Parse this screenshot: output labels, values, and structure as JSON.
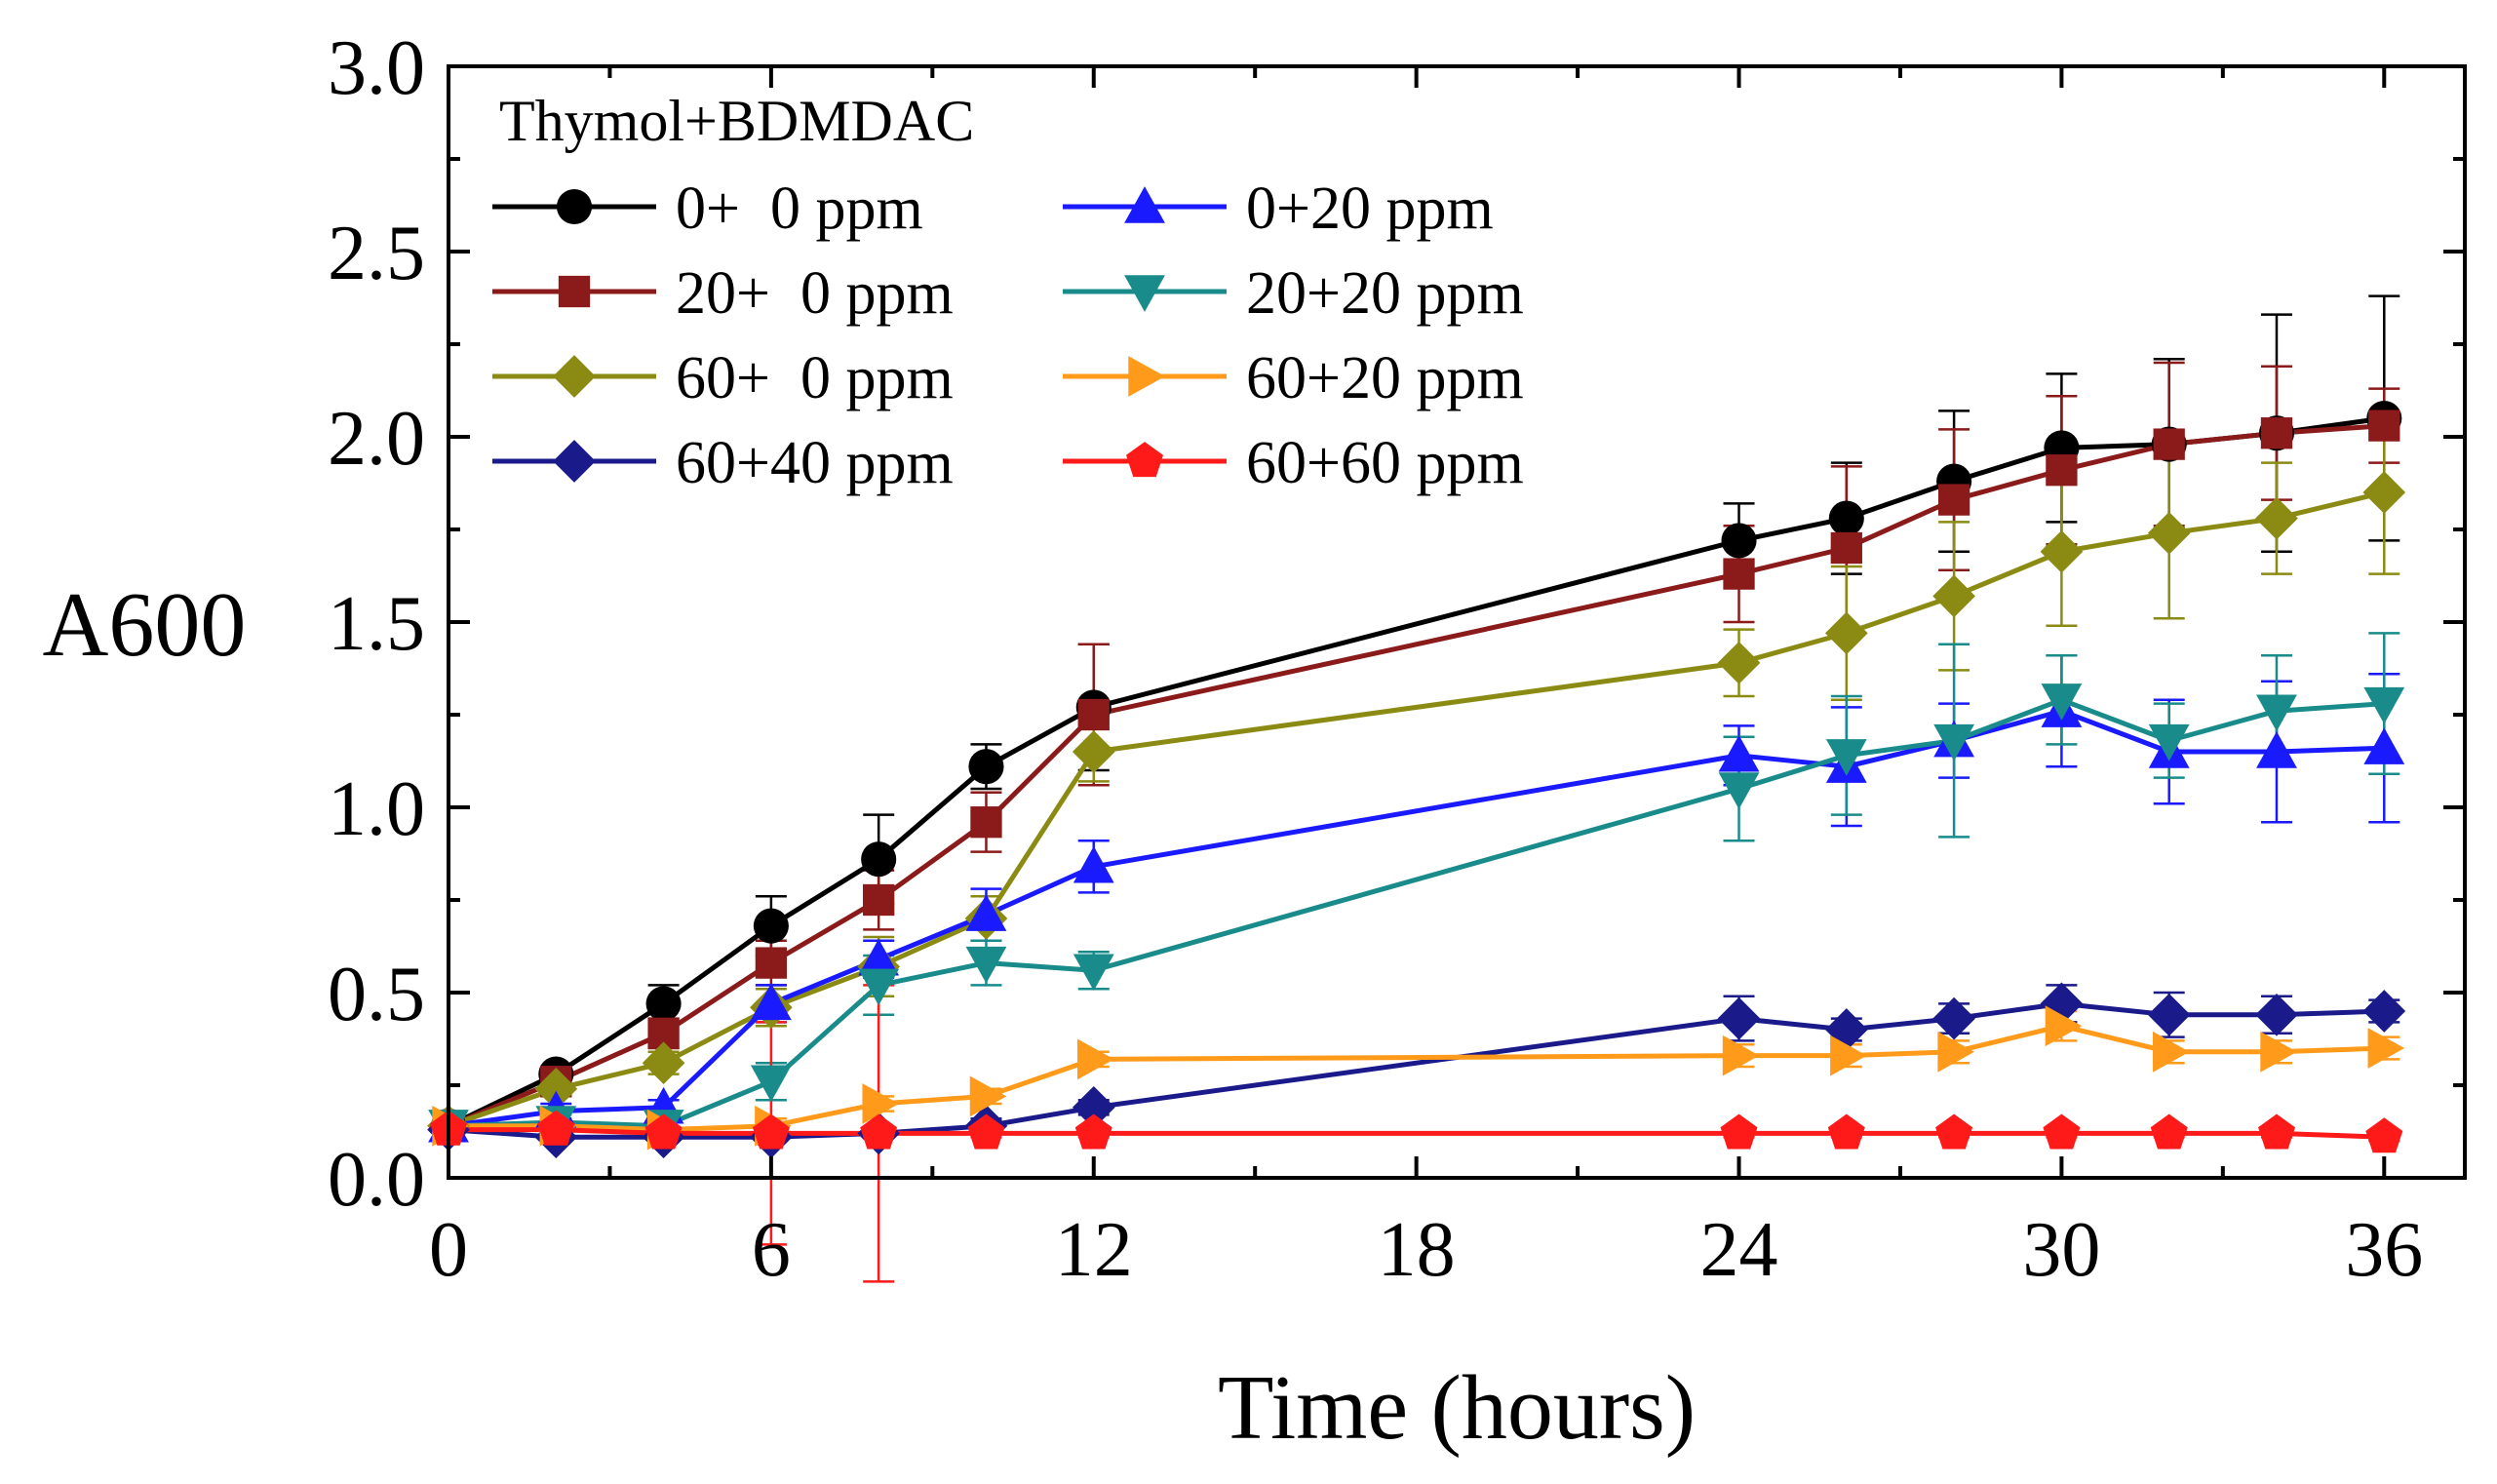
{
  "chart_data": {
    "type": "line",
    "title": "",
    "xlabel": "Time (hours)",
    "ylabel": "A600",
    "xlim": [
      0,
      37.5
    ],
    "ylim": [
      0,
      3.0
    ],
    "x_ticks": [
      0,
      6,
      12,
      18,
      24,
      30,
      36
    ],
    "x_tick_labels": [
      "0",
      "6",
      "12",
      "18",
      "24",
      "30",
      "36"
    ],
    "y_ticks": [
      0,
      0.5,
      1.0,
      1.5,
      2.0,
      2.5,
      3.0
    ],
    "y_tick_labels": [
      "0.0",
      "0.5",
      "1.0",
      "1.5",
      "2.0",
      "2.5",
      "3.0"
    ],
    "grid": false,
    "legend_title": "Thymol+BDMDAC",
    "legend_position": "top-left",
    "series": [
      {
        "name": "0+  0 ppm",
        "color": "#000000",
        "marker": "circle",
        "x": [
          0,
          2,
          4,
          6,
          8,
          10,
          12,
          24,
          26,
          28,
          30,
          32,
          34,
          36
        ],
        "values": [
          0.14,
          0.28,
          0.47,
          0.68,
          0.86,
          1.11,
          1.27,
          1.72,
          1.78,
          1.88,
          1.97,
          1.98,
          2.01,
          2.05
        ],
        "errors": [
          0.02,
          0.02,
          0.05,
          0.08,
          0.12,
          0.06,
          0.17,
          0.1,
          0.15,
          0.19,
          0.2,
          0.23,
          0.32,
          0.33
        ]
      },
      {
        "name": "20+  0 ppm",
        "color": "#8b1a1a",
        "marker": "square",
        "x": [
          0,
          2,
          4,
          6,
          8,
          10,
          12,
          24,
          26,
          28,
          30,
          32,
          34,
          36
        ],
        "values": [
          0.14,
          0.26,
          0.39,
          0.58,
          0.75,
          0.96,
          1.25,
          1.63,
          1.7,
          1.83,
          1.91,
          1.98,
          2.01,
          2.03
        ],
        "errors": [
          0.02,
          0.02,
          0.04,
          0.06,
          0.08,
          0.08,
          0.19,
          0.13,
          0.22,
          0.19,
          0.2,
          0.22,
          0.18,
          0.1
        ]
      },
      {
        "name": "60+  0 ppm",
        "color": "#8b8b14",
        "marker": "diamond",
        "x": [
          0,
          2,
          4,
          6,
          8,
          10,
          12,
          24,
          26,
          28,
          30,
          32,
          34,
          36
        ],
        "values": [
          0.14,
          0.24,
          0.31,
          0.46,
          0.57,
          0.7,
          1.15,
          1.39,
          1.47,
          1.57,
          1.69,
          1.74,
          1.78,
          1.85
        ],
        "errors": [
          0.02,
          0.02,
          0.03,
          0.05,
          0.08,
          0.06,
          0.08,
          0.09,
          0.18,
          0.2,
          0.2,
          0.23,
          0.15,
          0.22
        ]
      },
      {
        "name": "60+40 ppm",
        "color": "#1a1a8b",
        "marker": "diamond",
        "x": [
          0,
          2,
          4,
          6,
          8,
          10,
          12,
          24,
          26,
          28,
          30,
          32,
          34,
          36
        ],
        "values": [
          0.13,
          0.11,
          0.11,
          0.11,
          0.12,
          0.14,
          0.19,
          0.43,
          0.4,
          0.43,
          0.47,
          0.44,
          0.44,
          0.45
        ],
        "errors": [
          0.01,
          0.01,
          0.01,
          0.01,
          0.01,
          0.02,
          0.02,
          0.06,
          0.03,
          0.04,
          0.05,
          0.06,
          0.05,
          0.03
        ]
      },
      {
        "name": "0+20 ppm",
        "color": "#1a1aff",
        "marker": "triangle-up",
        "x": [
          0,
          2,
          4,
          6,
          8,
          10,
          12,
          24,
          26,
          28,
          30,
          32,
          34,
          36
        ],
        "values": [
          0.14,
          0.18,
          0.19,
          0.47,
          0.59,
          0.71,
          0.84,
          1.14,
          1.11,
          1.18,
          1.26,
          1.15,
          1.15,
          1.16
        ],
        "errors": [
          0.02,
          0.02,
          0.02,
          0.05,
          0.05,
          0.07,
          0.07,
          0.08,
          0.16,
          0.1,
          0.15,
          0.14,
          0.19,
          0.2
        ]
      },
      {
        "name": "20+20 ppm",
        "color": "#1a8b8b",
        "marker": "triangle-down",
        "x": [
          0,
          2,
          4,
          6,
          8,
          10,
          12,
          24,
          26,
          28,
          30,
          32,
          34,
          36
        ],
        "values": [
          0.14,
          0.15,
          0.14,
          0.26,
          0.52,
          0.58,
          0.56,
          1.05,
          1.14,
          1.18,
          1.29,
          1.18,
          1.26,
          1.28
        ],
        "errors": [
          0.02,
          0.02,
          0.02,
          0.05,
          0.08,
          0.06,
          0.05,
          0.14,
          0.16,
          0.26,
          0.12,
          0.1,
          0.15,
          0.19
        ]
      },
      {
        "name": "60+20 ppm",
        "color": "#ff9a1a",
        "marker": "triangle-right",
        "x": [
          0,
          2,
          4,
          6,
          8,
          10,
          12,
          24,
          26,
          28,
          30,
          32,
          34,
          36
        ],
        "values": [
          0.14,
          0.14,
          0.13,
          0.14,
          0.2,
          0.22,
          0.32,
          0.33,
          0.33,
          0.34,
          0.41,
          0.34,
          0.34,
          0.35
        ],
        "errors": [
          0.01,
          0.01,
          0.01,
          0.02,
          0.02,
          0.02,
          0.02,
          0.03,
          0.03,
          0.03,
          0.04,
          0.03,
          0.03,
          0.03
        ]
      },
      {
        "name": "60+60 ppm",
        "color": "#ff1a1a",
        "marker": "pentagon",
        "x": [
          0,
          2,
          4,
          6,
          8,
          10,
          12,
          24,
          26,
          28,
          30,
          32,
          34,
          36
        ],
        "values": [
          0.13,
          0.13,
          0.12,
          0.12,
          0.12,
          0.12,
          0.12,
          0.12,
          0.12,
          0.12,
          0.12,
          0.12,
          0.12,
          0.11
        ],
        "errors": [
          0.01,
          0.01,
          0.01,
          0.3,
          0.4,
          0.01,
          0.01,
          0.01,
          0.01,
          0.01,
          0.01,
          0.01,
          0.01,
          0.01
        ]
      }
    ],
    "legend_order": [
      0,
      4,
      1,
      5,
      2,
      6,
      3,
      7
    ]
  }
}
